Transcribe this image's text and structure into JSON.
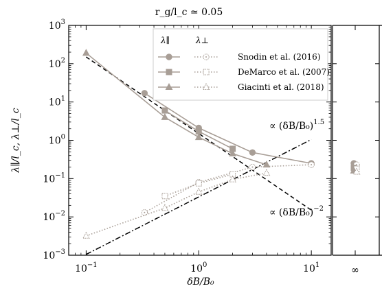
{
  "chart_data": {
    "type": "line",
    "title": "r_g/l_c ≃ 0.05",
    "xlabel": "δB/B₀",
    "ylabel": "λ∥/l_c, λ⊥/l_c",
    "x_scale": "log",
    "y_scale": "log",
    "xlim": [
      0.07,
      15
    ],
    "ylim": [
      0.001,
      1000
    ],
    "x_ticks": [
      {
        "value": 0.1,
        "label": "10",
        "exp": "−1"
      },
      {
        "value": 1,
        "label": "10",
        "exp": "0"
      },
      {
        "value": 10,
        "label": "10",
        "exp": "1"
      }
    ],
    "x_extra_tick": "∞",
    "y_ticks": [
      {
        "value": 0.001,
        "label": "10",
        "exp": "−3"
      },
      {
        "value": 0.01,
        "label": "10",
        "exp": "−2"
      },
      {
        "value": 0.1,
        "label": "10",
        "exp": "−1"
      },
      {
        "value": 1,
        "label": "10",
        "exp": "0"
      },
      {
        "value": 10,
        "label": "10",
        "exp": "1"
      },
      {
        "value": 100,
        "label": "10",
        "exp": "2"
      },
      {
        "value": 1000,
        "label": "10",
        "exp": "3"
      }
    ],
    "grid": false,
    "legend_position": "top-right",
    "legend_headers": [
      "λ∥",
      "λ⊥"
    ],
    "color": "#a89e96",
    "series": [
      {
        "name": "Snodin et al. (2016)",
        "marker": "circle",
        "parallel": {
          "x": [
            0.33,
            1,
            3,
            10
          ],
          "y": [
            17,
            2.1,
            0.48,
            0.25
          ]
        },
        "perp": {
          "x": [
            0.33,
            1,
            3,
            10
          ],
          "y": [
            0.013,
            0.08,
            0.2,
            0.23
          ]
        },
        "infinity": {
          "parallel": 0.25,
          "perp": 0.23
        }
      },
      {
        "name": "DeMarco et al. (2007)",
        "marker": "square",
        "parallel": {
          "x": [
            0.5,
            1,
            2
          ],
          "y": [
            6,
            1.7,
            0.6
          ]
        },
        "perp": {
          "x": [
            0.5,
            1,
            2
          ],
          "y": [
            0.035,
            0.075,
            0.13
          ]
        },
        "infinity": {
          "parallel": 0.19,
          "perp": 0.18
        }
      },
      {
        "name": "Giacinti et al. (2018)",
        "marker": "triangle",
        "parallel": {
          "x": [
            0.1,
            0.5,
            1,
            2,
            4
          ],
          "y": [
            190,
            4,
            1.2,
            0.45,
            0.23
          ]
        },
        "perp": {
          "x": [
            0.1,
            0.5,
            1,
            2,
            4
          ],
          "y": [
            0.0032,
            0.017,
            0.045,
            0.095,
            0.14
          ]
        },
        "infinity": {
          "parallel": 0.16,
          "perp": 0.15
        }
      }
    ],
    "reference_lines": [
      {
        "label": "∝ (δB/B₀)",
        "exp": "1.5",
        "style": "dashdot",
        "x": [
          0.1,
          10
        ],
        "y": [
          0.00105,
          1.05
        ]
      },
      {
        "label": "∝ (δB/B₀)",
        "exp": "−2",
        "style": "dashed",
        "x": [
          0.1,
          10
        ],
        "y": [
          150,
          0.015
        ]
      }
    ]
  }
}
